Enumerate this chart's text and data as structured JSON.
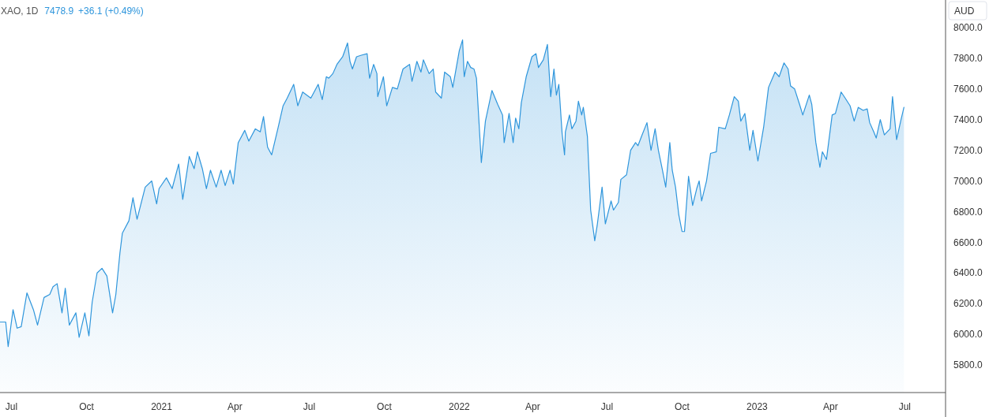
{
  "chart_data": {
    "type": "area",
    "title": "XAO, 1D",
    "ylabel": "AUD",
    "annotations": [
      "7478.9",
      "+36.1 (+0.49%)"
    ],
    "xlim": [
      "2020-06-17",
      "2023-08-20"
    ],
    "ylim": [
      5620,
      8180
    ],
    "xticks": [
      {
        "value": "2020-07-01",
        "label": "Jul"
      },
      {
        "value": "2020-10-01",
        "label": "Oct"
      },
      {
        "value": "2021-01-01",
        "label": "2021"
      },
      {
        "value": "2021-04-01",
        "label": "Apr"
      },
      {
        "value": "2021-07-01",
        "label": "Jul"
      },
      {
        "value": "2021-10-01",
        "label": "Oct"
      },
      {
        "value": "2022-01-01",
        "label": "2022"
      },
      {
        "value": "2022-04-01",
        "label": "Apr"
      },
      {
        "value": "2022-07-01",
        "label": "Jul"
      },
      {
        "value": "2022-10-01",
        "label": "Oct"
      },
      {
        "value": "2023-01-01",
        "label": "2023"
      },
      {
        "value": "2023-04-01",
        "label": "Apr"
      },
      {
        "value": "2023-07-01",
        "label": "Jul"
      }
    ],
    "yticks": [
      {
        "value": 5800,
        "label": "5800.0"
      },
      {
        "value": 6000,
        "label": "6000.0"
      },
      {
        "value": 6200,
        "label": "6200.0"
      },
      {
        "value": 6400,
        "label": "6400.0"
      },
      {
        "value": 6600,
        "label": "6600.0"
      },
      {
        "value": 6800,
        "label": "6800.0"
      },
      {
        "value": 7000,
        "label": "7000.0"
      },
      {
        "value": 7200,
        "label": "7200.0"
      },
      {
        "value": 7400,
        "label": "7400.0"
      },
      {
        "value": 7600,
        "label": "7600.0"
      },
      {
        "value": 7800,
        "label": "7800.0"
      },
      {
        "value": 8000,
        "label": "8000.0"
      }
    ],
    "grid": false,
    "series": [
      {
        "color": "#2f96dc",
        "x": [
          "2020-06-17",
          "2020-06-24",
          "2020-06-27",
          "2020-07-03",
          "2020-07-08",
          "2020-07-13",
          "2020-07-20",
          "2020-07-28",
          "2020-08-02",
          "2020-08-10",
          "2020-08-17",
          "2020-08-21",
          "2020-08-26",
          "2020-09-01",
          "2020-09-05",
          "2020-09-10",
          "2020-09-18",
          "2020-09-22",
          "2020-09-29",
          "2020-10-04",
          "2020-10-08",
          "2020-10-14",
          "2020-10-20",
          "2020-10-26",
          "2020-11-02",
          "2020-11-06",
          "2020-11-11",
          "2020-11-14",
          "2020-11-22",
          "2020-11-27",
          "2020-12-02",
          "2020-12-12",
          "2020-12-20",
          "2020-12-26",
          "2020-12-29",
          "2021-01-07",
          "2021-01-14",
          "2021-01-22",
          "2021-01-27",
          "2021-02-04",
          "2021-02-10",
          "2021-02-14",
          "2021-02-20",
          "2021-02-25",
          "2021-03-02",
          "2021-03-09",
          "2021-03-15",
          "2021-03-20",
          "2021-03-26",
          "2021-03-30",
          "2021-04-05",
          "2021-04-13",
          "2021-04-18",
          "2021-04-26",
          "2021-05-02",
          "2021-05-06",
          "2021-05-11",
          "2021-05-16",
          "2021-05-24",
          "2021-05-30",
          "2021-06-04",
          "2021-06-12",
          "2021-06-17",
          "2021-06-23",
          "2021-07-03",
          "2021-07-12",
          "2021-07-17",
          "2021-07-22",
          "2021-07-25",
          "2021-07-30",
          "2021-08-04",
          "2021-08-11",
          "2021-08-17",
          "2021-08-20",
          "2021-08-23",
          "2021-08-28",
          "2021-09-03",
          "2021-09-10",
          "2021-09-13",
          "2021-09-18",
          "2021-09-22",
          "2021-09-23",
          "2021-09-30",
          "2021-10-04",
          "2021-10-11",
          "2021-10-17",
          "2021-10-24",
          "2021-11-01",
          "2021-11-04",
          "2021-11-10",
          "2021-11-15",
          "2021-11-18",
          "2021-11-25",
          "2021-11-30",
          "2021-12-03",
          "2021-12-10",
          "2021-12-14",
          "2021-12-21",
          "2021-12-24",
          "2022-01-01",
          "2022-01-05",
          "2022-01-07",
          "2022-01-11",
          "2022-01-15",
          "2022-01-19",
          "2022-01-22",
          "2022-01-28",
          "2022-02-02",
          "2022-02-10",
          "2022-02-17",
          "2022-02-23",
          "2022-02-25",
          "2022-03-03",
          "2022-03-08",
          "2022-03-11",
          "2022-03-15",
          "2022-03-18",
          "2022-03-24",
          "2022-03-31",
          "2022-04-05",
          "2022-04-08",
          "2022-04-14",
          "2022-04-19",
          "2022-04-23",
          "2022-04-27",
          "2022-04-30",
          "2022-05-03",
          "2022-05-07",
          "2022-05-10",
          "2022-05-11",
          "2022-05-16",
          "2022-05-19",
          "2022-05-24",
          "2022-05-27",
          "2022-05-31",
          "2022-06-02",
          "2022-06-07",
          "2022-06-11",
          "2022-06-16",
          "2022-06-19",
          "2022-06-25",
          "2022-06-29",
          "2022-07-06",
          "2022-07-09",
          "2022-07-15",
          "2022-07-18",
          "2022-07-25",
          "2022-07-30",
          "2022-08-05",
          "2022-08-08",
          "2022-08-13",
          "2022-08-19",
          "2022-08-24",
          "2022-08-29",
          "2022-09-02",
          "2022-09-07",
          "2022-09-11",
          "2022-09-16",
          "2022-09-19",
          "2022-09-23",
          "2022-09-27",
          "2022-10-01",
          "2022-10-04",
          "2022-10-09",
          "2022-10-14",
          "2022-10-19",
          "2022-10-22",
          "2022-10-25",
          "2022-10-31",
          "2022-11-05",
          "2022-11-12",
          "2022-11-15",
          "2022-11-23",
          "2022-11-28",
          "2022-12-04",
          "2022-12-09",
          "2022-12-12",
          "2022-12-17",
          "2022-12-23",
          "2022-12-27",
          "2023-01-02",
          "2023-01-09",
          "2023-01-15",
          "2023-01-23",
          "2023-01-28",
          "2023-02-03",
          "2023-02-08",
          "2023-02-11",
          "2023-02-16",
          "2023-02-22",
          "2023-02-26",
          "2023-03-06",
          "2023-03-09",
          "2023-03-14",
          "2023-03-19",
          "2023-03-22",
          "2023-03-27",
          "2023-04-03",
          "2023-04-07",
          "2023-04-14",
          "2023-04-19",
          "2023-04-25",
          "2023-04-30",
          "2023-05-05",
          "2023-05-11",
          "2023-05-16",
          "2023-05-19",
          "2023-05-24",
          "2023-05-27",
          "2023-06-01",
          "2023-06-06",
          "2023-06-13",
          "2023-06-16",
          "2023-06-21",
          "2023-06-26",
          "2023-06-30"
        ],
        "values": [
          6080,
          6080,
          5920,
          6160,
          6040,
          6050,
          6270,
          6160,
          6060,
          6240,
          6260,
          6310,
          6330,
          6140,
          6300,
          6060,
          6140,
          5980,
          6140,
          5990,
          6210,
          6400,
          6430,
          6380,
          6140,
          6260,
          6530,
          6660,
          6740,
          6890,
          6750,
          6960,
          7000,
          6850,
          6950,
          7020,
          6950,
          7110,
          6880,
          7160,
          7080,
          7190,
          7080,
          6950,
          7070,
          6960,
          7070,
          6970,
          7070,
          6980,
          7250,
          7330,
          7260,
          7340,
          7320,
          7420,
          7220,
          7170,
          7350,
          7490,
          7540,
          7630,
          7490,
          7580,
          7540,
          7630,
          7530,
          7680,
          7670,
          7700,
          7760,
          7810,
          7900,
          7780,
          7730,
          7810,
          7820,
          7830,
          7670,
          7760,
          7700,
          7550,
          7680,
          7490,
          7610,
          7600,
          7730,
          7760,
          7650,
          7780,
          7710,
          7790,
          7700,
          7730,
          7580,
          7540,
          7710,
          7680,
          7610,
          7850,
          7920,
          7680,
          7780,
          7740,
          7730,
          7670,
          7120,
          7390,
          7590,
          7500,
          7430,
          7250,
          7440,
          7250,
          7410,
          7340,
          7510,
          7680,
          7810,
          7830,
          7740,
          7790,
          7890,
          7550,
          7730,
          7560,
          7630,
          7310,
          7170,
          7320,
          7430,
          7340,
          7390,
          7520,
          7430,
          7480,
          7290,
          6810,
          6610,
          6710,
          6960,
          6720,
          6870,
          6810,
          6860,
          7010,
          7040,
          7200,
          7250,
          7230,
          7300,
          7380,
          7200,
          7340,
          7200,
          7070,
          6960,
          7250,
          7070,
          6960,
          6780,
          6670,
          6670,
          7030,
          6840,
          6950,
          7000,
          6870,
          7000,
          7180,
          7190,
          7350,
          7340,
          7430,
          7550,
          7520,
          7390,
          7440,
          7200,
          7330,
          7130,
          7350,
          7610,
          7710,
          7680,
          7770,
          7730,
          7620,
          7600,
          7500,
          7430,
          7560,
          7500,
          7250,
          7090,
          7190,
          7140,
          7430,
          7440,
          7580,
          7540,
          7490,
          7390,
          7480,
          7460,
          7470,
          7380,
          7320,
          7280,
          7400,
          7300,
          7340,
          7550,
          7270,
          7390,
          7480
        ]
      }
    ]
  }
}
